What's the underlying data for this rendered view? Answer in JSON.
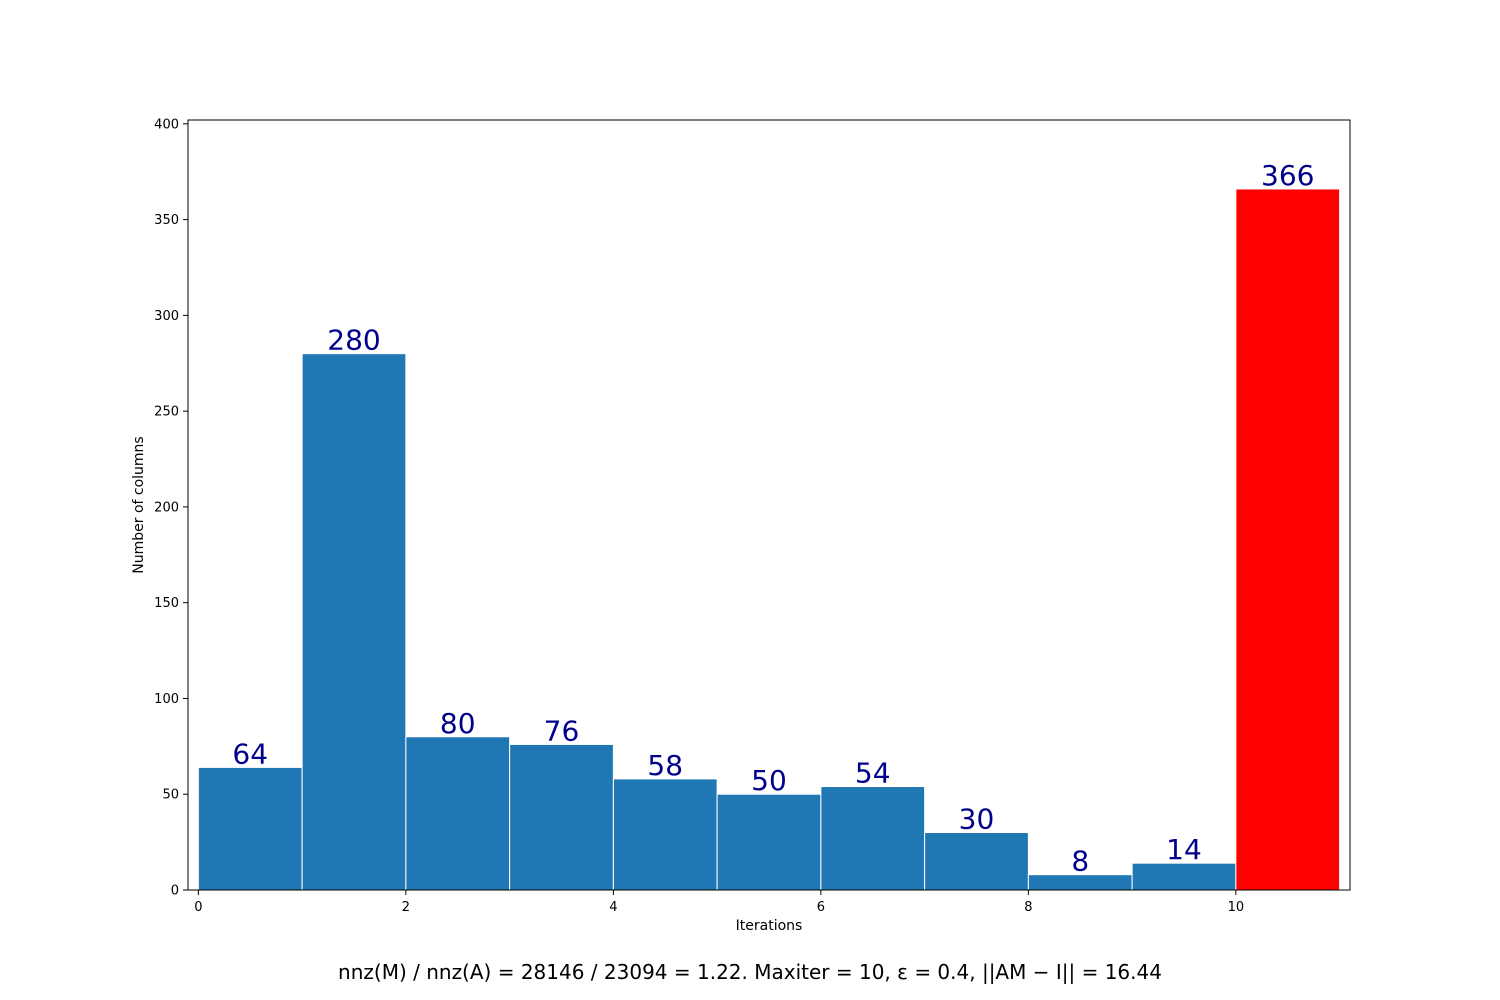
{
  "chart_data": {
    "type": "bar",
    "bins": [
      {
        "x_start": 0,
        "x_end": 1,
        "value": 64
      },
      {
        "x_start": 1,
        "x_end": 2,
        "value": 280
      },
      {
        "x_start": 2,
        "x_end": 3,
        "value": 80
      },
      {
        "x_start": 3,
        "x_end": 4,
        "value": 76
      },
      {
        "x_start": 4,
        "x_end": 5,
        "value": 58
      },
      {
        "x_start": 5,
        "x_end": 6,
        "value": 50
      },
      {
        "x_start": 6,
        "x_end": 7,
        "value": 54
      },
      {
        "x_start": 7,
        "x_end": 8,
        "value": 30
      },
      {
        "x_start": 8,
        "x_end": 9,
        "value": 8
      },
      {
        "x_start": 9,
        "x_end": 10,
        "value": 14
      },
      {
        "x_start": 10,
        "x_end": 11,
        "value": 366
      }
    ],
    "bar_colors": {
      "default": "#1f77b4",
      "highlight": "#ff0000",
      "highlight_index": 10,
      "edge": "#ffffff"
    },
    "data_label_color": "#00008b",
    "xlabel": "Iterations",
    "ylabel": "Number of columns",
    "xlim": [
      -0.1,
      11.1
    ],
    "ylim": [
      0,
      402
    ],
    "xticks": [
      0,
      2,
      4,
      6,
      8,
      10
    ],
    "yticks": [
      0,
      50,
      100,
      150,
      200,
      250,
      300,
      350,
      400
    ],
    "grid": false,
    "caption": "nnz(M) / nnz(A) = 28146 / 23094 = 1.22. Maxiter = 10, ε = 0.4, ||AM − I|| = 16.44"
  }
}
